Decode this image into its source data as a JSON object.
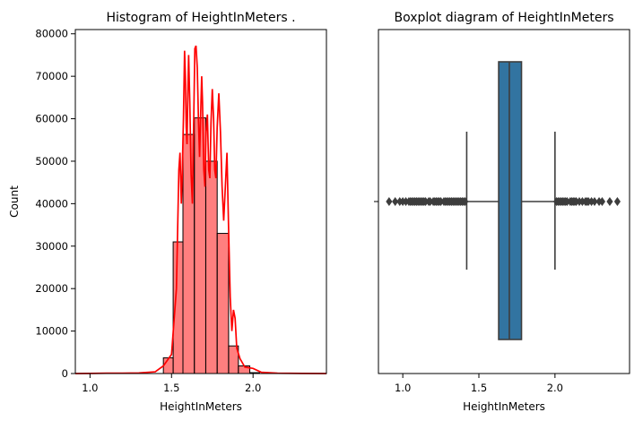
{
  "chart_data": [
    {
      "type": "bar",
      "subtype": "histogram-with-kde",
      "title": "Histogram of HeightInMeters .",
      "xlabel": "HeightInMeters",
      "ylabel": "Count",
      "xlim": [
        0.91,
        2.45
      ],
      "ylim": [
        0,
        81000
      ],
      "xticks": [
        1.0,
        1.5,
        2.0
      ],
      "xtick_labels": [
        "1.0",
        "1.5",
        "2.0"
      ],
      "yticks": [
        0,
        10000,
        20000,
        30000,
        40000,
        50000,
        60000,
        70000,
        80000
      ],
      "ytick_labels": [
        "0",
        "10000",
        "20000",
        "30000",
        "40000",
        "50000",
        "60000",
        "70000",
        "80000"
      ],
      "bar_color": "#ff0000",
      "bar_opacity": 0.5,
      "kde_color": "#ff0000",
      "bins": [
        {
          "x0": 1.45,
          "x1": 1.51,
          "count": 3700
        },
        {
          "x0": 1.51,
          "x1": 1.57,
          "count": 31000
        },
        {
          "x0": 1.57,
          "x1": 1.64,
          "count": 56300
        },
        {
          "x0": 1.64,
          "x1": 1.71,
          "count": 60200
        },
        {
          "x0": 1.71,
          "x1": 1.78,
          "count": 50000
        },
        {
          "x0": 1.78,
          "x1": 1.85,
          "count": 33000
        },
        {
          "x0": 1.85,
          "x1": 1.91,
          "count": 6500
        },
        {
          "x0": 1.91,
          "x1": 1.98,
          "count": 1800
        },
        {
          "x0": 1.98,
          "x1": 2.04,
          "count": 200
        }
      ],
      "kde": [
        [
          0.91,
          0
        ],
        [
          1.0,
          30
        ],
        [
          1.1,
          80
        ],
        [
          1.2,
          90
        ],
        [
          1.3,
          150
        ],
        [
          1.4,
          400
        ],
        [
          1.45,
          1800
        ],
        [
          1.5,
          4500
        ],
        [
          1.53,
          20000
        ],
        [
          1.545,
          48000
        ],
        [
          1.552,
          52000
        ],
        [
          1.56,
          40000
        ],
        [
          1.565,
          46000
        ],
        [
          1.573,
          60000
        ],
        [
          1.58,
          76000
        ],
        [
          1.585,
          70000
        ],
        [
          1.59,
          58000
        ],
        [
          1.595,
          54000
        ],
        [
          1.6,
          66000
        ],
        [
          1.605,
          75000
        ],
        [
          1.612,
          64000
        ],
        [
          1.62,
          47000
        ],
        [
          1.628,
          40000
        ],
        [
          1.635,
          57000
        ],
        [
          1.643,
          76500
        ],
        [
          1.65,
          77200
        ],
        [
          1.658,
          72000
        ],
        [
          1.665,
          60000
        ],
        [
          1.672,
          51000
        ],
        [
          1.68,
          63000
        ],
        [
          1.685,
          70000
        ],
        [
          1.69,
          64000
        ],
        [
          1.698,
          48000
        ],
        [
          1.705,
          44000
        ],
        [
          1.712,
          57000
        ],
        [
          1.72,
          61000
        ],
        [
          1.728,
          48000
        ],
        [
          1.735,
          46000
        ],
        [
          1.742,
          59000
        ],
        [
          1.75,
          67000
        ],
        [
          1.758,
          60000
        ],
        [
          1.765,
          48000
        ],
        [
          1.772,
          46000
        ],
        [
          1.78,
          58000
        ],
        [
          1.79,
          66000
        ],
        [
          1.8,
          57000
        ],
        [
          1.81,
          44000
        ],
        [
          1.82,
          36000
        ],
        [
          1.83,
          44000
        ],
        [
          1.84,
          52000
        ],
        [
          1.85,
          34000
        ],
        [
          1.86,
          18000
        ],
        [
          1.87,
          10000
        ],
        [
          1.88,
          15000
        ],
        [
          1.89,
          13000
        ],
        [
          1.9,
          6000
        ],
        [
          1.92,
          3500
        ],
        [
          1.95,
          1500
        ],
        [
          2.0,
          1200
        ],
        [
          2.05,
          300
        ],
        [
          2.15,
          80
        ],
        [
          2.3,
          20
        ],
        [
          2.45,
          0
        ]
      ]
    },
    {
      "type": "boxplot",
      "title": "Boxplot diagram of HeightInMeters",
      "xlabel": "HeightInMeters",
      "ylabel": "",
      "xlim": [
        0.84,
        2.49
      ],
      "xticks": [
        1.0,
        1.5,
        2.0
      ],
      "xtick_labels": [
        "1.0",
        "1.5",
        "2.0"
      ],
      "box_color": "#3274a1",
      "whisker_low": 1.42,
      "q1": 1.63,
      "median": 1.7,
      "q3": 1.78,
      "whisker_high": 2.0,
      "outliers_low": [
        0.91,
        0.95,
        0.98,
        1.0,
        1.02,
        1.04,
        1.05,
        1.06,
        1.07,
        1.08,
        1.09,
        1.1,
        1.11,
        1.12,
        1.13,
        1.14,
        1.15,
        1.17,
        1.18,
        1.2,
        1.21,
        1.22,
        1.23,
        1.24,
        1.25,
        1.27,
        1.28,
        1.29,
        1.3,
        1.31,
        1.32,
        1.33,
        1.34,
        1.35,
        1.36,
        1.37,
        1.38,
        1.39,
        1.4,
        1.41
      ],
      "outliers_high": [
        2.01,
        2.02,
        2.03,
        2.04,
        2.05,
        2.06,
        2.07,
        2.08,
        2.1,
        2.11,
        2.12,
        2.13,
        2.14,
        2.16,
        2.18,
        2.2,
        2.21,
        2.22,
        2.24,
        2.26,
        2.29,
        2.31,
        2.36,
        2.41
      ]
    }
  ]
}
